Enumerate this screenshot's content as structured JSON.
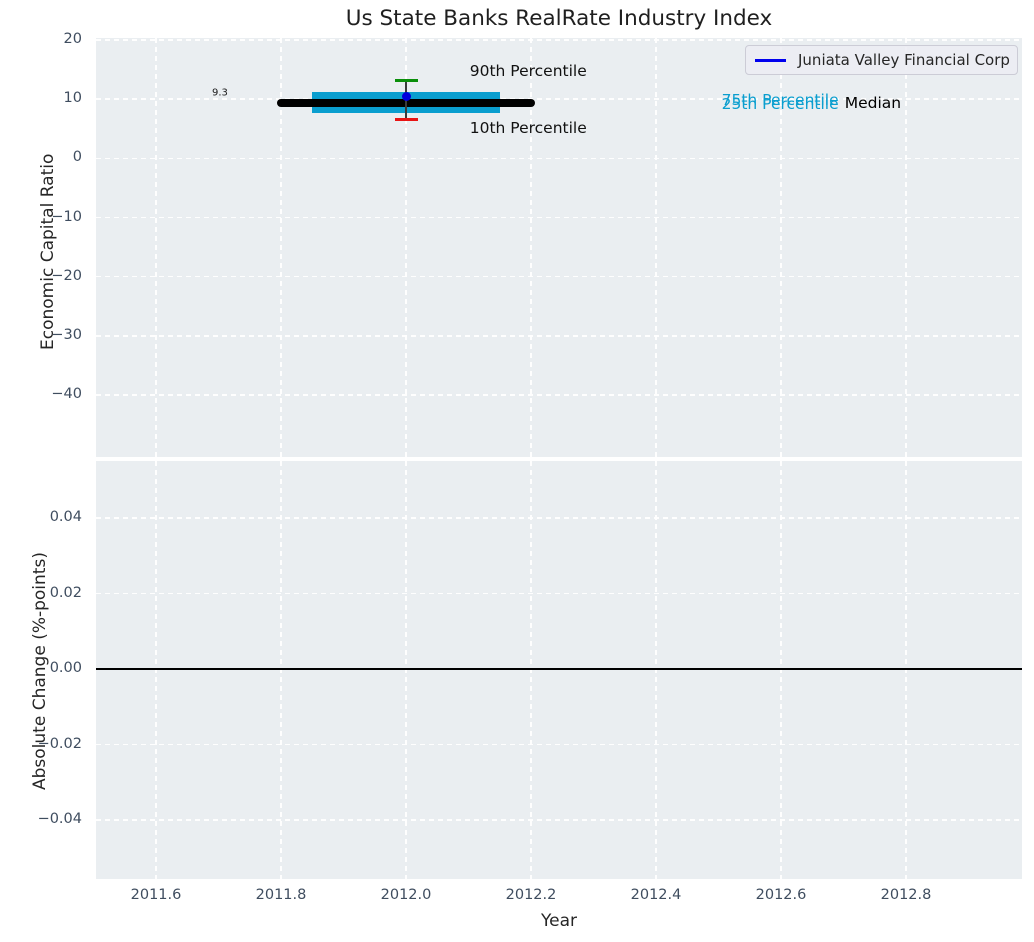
{
  "title": "Us State Banks RealRate Industry Index",
  "legend": {
    "label": "Juniata Valley Financial Corp",
    "color": "#0000ee"
  },
  "colors": {
    "axes_bg": "#eaeef1",
    "grid": "#ffffff",
    "tick_label": "#3f4d5f",
    "text": "#262626",
    "band": "#0a9ecf",
    "median_line": "#000000",
    "p90_cap": "#0a8f0a",
    "p10_cap": "#e81414",
    "whisker_line": "#3a3a3a",
    "company_marker": "#0000dd",
    "zero_line": "#000000"
  },
  "chart_data": [
    {
      "type": "line",
      "title": "Us State Banks RealRate Industry Index",
      "ylabel": "Economic Capital Ratio",
      "ylim": [
        -50.5,
        20.3
      ],
      "xlim": [
        2011.5,
        2012.99
      ],
      "grid": true,
      "legend_position": "upper right",
      "yticks": [
        20,
        10,
        0,
        -10,
        -20,
        -30,
        -40
      ],
      "ytick_labels": [
        "20",
        "10",
        "0",
        "−10",
        "−20",
        "−30",
        "−40"
      ],
      "series": [
        {
          "name": "Juniata Valley Financial Corp",
          "x": [
            2012.0
          ],
          "values": [
            10.4
          ],
          "marker": "circle",
          "color": "#0000dd"
        }
      ],
      "industry_stats": {
        "x_center": 2012.0,
        "median": {
          "value": 9.3,
          "x_start": 2011.8,
          "x_end": 2012.2
        },
        "p75": {
          "value": 11.2
        },
        "p25": {
          "value": 7.65
        },
        "band_x_start": 2011.85,
        "band_x_end": 2012.15,
        "p90": {
          "value": 13.2
        },
        "p10": {
          "value": 6.55
        }
      },
      "annotations": [
        {
          "text": "9.3",
          "x": 2011.715,
          "y": 11.0,
          "color": "#1a1a1a",
          "size": 10,
          "anchor": "end"
        },
        {
          "text": "90th Percentile",
          "x": 2012.102,
          "y": 14.8,
          "color": "#111111",
          "size": 15.5,
          "anchor": "start"
        },
        {
          "text": "10th Percentile",
          "x": 2012.102,
          "y": 5.1,
          "color": "#111111",
          "size": 15.5,
          "anchor": "start"
        },
        {
          "text": "75th Percentile",
          "x": 2012.505,
          "y": 9.78,
          "color": "#0a9ecf",
          "size": 15.5,
          "anchor": "start"
        },
        {
          "text": "25th Percentile",
          "x": 2012.505,
          "y": 9.12,
          "color": "#0a9ecf",
          "size": 15.5,
          "anchor": "start"
        },
        {
          "text": "Median",
          "x": 2012.702,
          "y": 9.33,
          "color": "#000000",
          "size": 15.5,
          "anchor": "start"
        }
      ]
    },
    {
      "type": "line",
      "ylabel": "Absolute Change (%-points)",
      "xlabel": "Year",
      "ylim": [
        -0.0556,
        0.0551
      ],
      "grid": true,
      "yticks": [
        0.04,
        0.02,
        0.0,
        -0.02,
        -0.04
      ],
      "ytick_labels": [
        "0.04",
        "0.02",
        "0.00",
        "−0.02",
        "−0.04"
      ],
      "xticks": [
        2011.6,
        2011.8,
        2012.0,
        2012.2,
        2012.4,
        2012.6,
        2012.8
      ],
      "xtick_labels": [
        "2011.6",
        "2011.8",
        "2012.0",
        "2012.2",
        "2012.4",
        "2012.6",
        "2012.8"
      ],
      "hline": 0.0
    }
  ]
}
